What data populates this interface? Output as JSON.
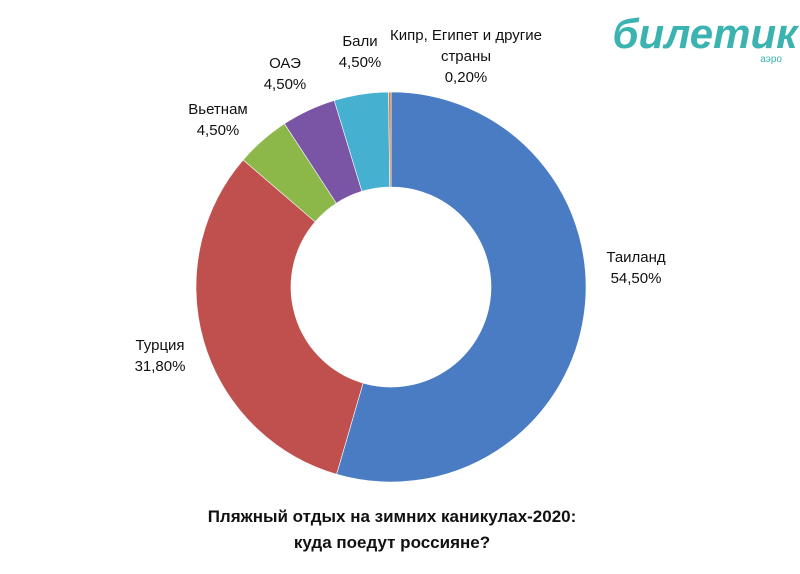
{
  "chart_data": {
    "type": "donut",
    "title": [
      "Пляжный отдых на зимних каникулах-2020:",
      "куда поедут россияне?"
    ],
    "categories": [
      "Таиланд",
      "Турция",
      "Вьетнам",
      "ОАЭ",
      "Бали",
      "Кипр, Египет и другие страны"
    ],
    "values": [
      54.5,
      31.8,
      4.5,
      4.5,
      4.5,
      0.2
    ],
    "value_labels": [
      "54,50%",
      "31,80%",
      "4,50%",
      "4,50%",
      "4,50%",
      "0,20%"
    ],
    "colors": [
      "#4a7cc4",
      "#c0504d",
      "#8cb84a",
      "#7a55a6",
      "#45b0d0",
      "#e07b30"
    ]
  },
  "logo": {
    "name": "билетик",
    "sub": "аэро"
  }
}
